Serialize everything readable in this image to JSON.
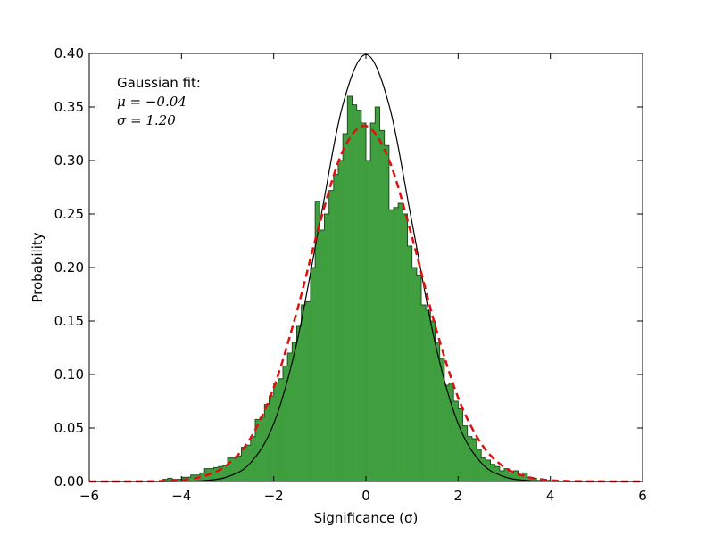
{
  "chart_data": {
    "type": "histogram",
    "xlabel": "Significance (σ)",
    "ylabel": "Probability",
    "annotations": [
      "Gaussian fit:",
      "μ = −0.04",
      "σ = 1.20"
    ],
    "xlim": [
      -6,
      6
    ],
    "ylim": [
      0,
      0.4
    ],
    "xticks": [
      {
        "value": -6,
        "label": "−6"
      },
      {
        "value": -4,
        "label": "−4"
      },
      {
        "value": -2,
        "label": "−2"
      },
      0,
      2,
      4,
      6
    ],
    "yticks": [
      {
        "value": 0,
        "label": "0.00"
      },
      {
        "value": 0.05,
        "label": "0.05"
      },
      {
        "value": 0.1,
        "label": "0.10"
      },
      {
        "value": 0.15,
        "label": "0.15"
      },
      {
        "value": 0.2,
        "label": "0.20"
      },
      {
        "value": 0.25,
        "label": "0.25"
      },
      {
        "value": 0.3,
        "label": "0.30"
      },
      {
        "value": 0.35,
        "label": "0.35"
      },
      {
        "value": 0.4,
        "label": "0.40"
      }
    ],
    "color": "#3f9f3f",
    "edgecolor": "#1f4f1f",
    "bins": [
      -4.5,
      -4.4,
      -4.3,
      -4.2,
      -4.1,
      -4.0,
      -3.9,
      -3.8,
      -3.7,
      -3.6,
      -3.5,
      -3.4,
      -3.3,
      -3.2,
      -3.1,
      -3.0,
      -2.9,
      -2.8,
      -2.7,
      -2.6,
      -2.5,
      -2.4,
      -2.3,
      -2.2,
      -2.1,
      -2.0,
      -1.9,
      -1.8,
      -1.7,
      -1.6,
      -1.5,
      -1.4,
      -1.3,
      -1.2,
      -1.1,
      -1.0,
      -0.9,
      -0.8,
      -0.7,
      -0.6,
      -0.5,
      -0.4,
      -0.3,
      -0.2,
      -0.1,
      0.0,
      0.1,
      0.2,
      0.3,
      0.4,
      0.5,
      0.6,
      0.7,
      0.8,
      0.9,
      1.0,
      1.1,
      1.2,
      1.3,
      1.4,
      1.5,
      1.6,
      1.7,
      1.8,
      1.9,
      2.0,
      2.1,
      2.2,
      2.3,
      2.4,
      2.5,
      2.6,
      2.7,
      2.8,
      2.9,
      3.0,
      3.1,
      3.2,
      3.3,
      3.4,
      3.5,
      3.6,
      3.7,
      3.8,
      3.9,
      4.0
    ],
    "values": [
      0.0,
      0.002,
      0.003,
      0.002,
      0.002,
      0.004,
      0.004,
      0.006,
      0.006,
      0.008,
      0.012,
      0.012,
      0.013,
      0.014,
      0.015,
      0.022,
      0.022,
      0.024,
      0.032,
      0.034,
      0.042,
      0.058,
      0.06,
      0.072,
      0.08,
      0.092,
      0.096,
      0.108,
      0.12,
      0.13,
      0.145,
      0.165,
      0.168,
      0.2,
      0.262,
      0.235,
      0.25,
      0.272,
      0.287,
      0.3,
      0.325,
      0.36,
      0.352,
      0.347,
      0.335,
      0.3,
      0.335,
      0.35,
      0.328,
      0.314,
      0.254,
      0.256,
      0.26,
      0.25,
      0.22,
      0.2,
      0.193,
      0.165,
      0.16,
      0.15,
      0.13,
      0.115,
      0.09,
      0.092,
      0.075,
      0.068,
      0.052,
      0.042,
      0.04,
      0.03,
      0.022,
      0.02,
      0.016,
      0.014,
      0.01,
      0.012,
      0.008,
      0.01,
      0.006,
      0.008,
      0.004,
      0.003,
      0.001,
      0.0,
      0.001
    ],
    "curves": [
      {
        "color": "#000000",
        "dashed": false,
        "x": [
          -6,
          -5.5,
          -5,
          -4.5,
          -4,
          -3.5,
          -3,
          -2.5,
          -2,
          -1.5,
          -1,
          -0.5,
          0,
          0.5,
          1,
          1.5,
          2,
          2.5,
          3,
          3.5,
          4,
          4.5,
          5,
          5.5,
          6
        ],
        "values": [
          0,
          0,
          0,
          0,
          0.0001,
          0.0009,
          0.0044,
          0.0175,
          0.054,
          0.1295,
          0.242,
          0.3521,
          0.3989,
          0.3521,
          0.242,
          0.1295,
          0.054,
          0.0175,
          0.0044,
          0.0009,
          0.0001,
          0,
          0,
          0,
          0
        ]
      },
      {
        "color": "#e01010",
        "dashed": true,
        "x": [
          -6,
          -5.5,
          -5,
          -4.5,
          -4,
          -3.5,
          -3,
          -2.5,
          -2,
          -1.5,
          -1,
          -0.5,
          0,
          0.5,
          1,
          1.5,
          2,
          2.5,
          3,
          3.5,
          4,
          4.5,
          5,
          5.5,
          6
        ],
        "values": [
          0,
          0,
          0.0001,
          0.0003,
          0.0014,
          0.0052,
          0.0159,
          0.0407,
          0.0876,
          0.1586,
          0.2414,
          0.309,
          0.3323,
          0.3006,
          0.2284,
          0.146,
          0.0784,
          0.0354,
          0.0134,
          0.0043,
          0.0011,
          0.0003,
          0.0001,
          0,
          0
        ]
      }
    ]
  }
}
